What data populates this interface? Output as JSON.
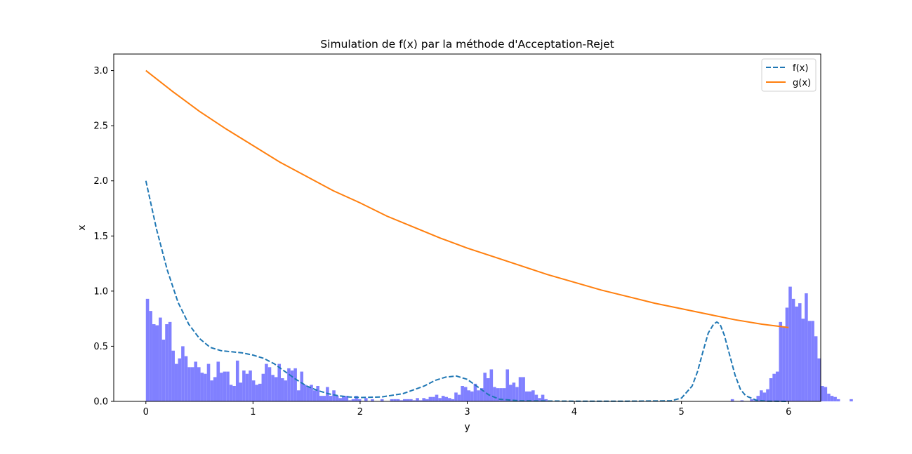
{
  "chart_data": {
    "type": "line",
    "title": "Simulation de f(x) par la méthode d'Acceptation-Rejet",
    "xlabel": "y",
    "ylabel": "x",
    "xlim": [
      -0.3,
      6.3
    ],
    "ylim": [
      0,
      3.15
    ],
    "xticks": [
      "0",
      "1",
      "2",
      "3",
      "4",
      "5",
      "6"
    ],
    "yticks": [
      "0.0",
      "0.5",
      "1.0",
      "1.5",
      "2.0",
      "2.5",
      "3.0"
    ],
    "grid": false,
    "legend_position": "upper right",
    "series": [
      {
        "name": "f(x)",
        "style": "dashed",
        "color": "#1f77b4",
        "x": [
          0,
          0.1,
          0.2,
          0.3,
          0.4,
          0.5,
          0.6,
          0.7,
          0.8,
          0.9,
          1.0,
          1.1,
          1.2,
          1.3,
          1.4,
          1.5,
          1.6,
          1.7,
          1.8,
          1.9,
          2.0,
          2.2,
          2.4,
          2.6,
          2.7,
          2.8,
          2.9,
          3.0,
          3.1,
          3.2,
          3.3,
          3.5,
          4.0,
          4.5,
          4.9,
          5.0,
          5.1,
          5.15,
          5.2,
          5.25,
          5.3,
          5.33,
          5.36,
          5.4,
          5.45,
          5.5,
          5.55,
          5.6,
          5.7,
          5.8,
          6.0
        ],
        "y": [
          2.0,
          1.56,
          1.19,
          0.9,
          0.7,
          0.57,
          0.49,
          0.46,
          0.45,
          0.44,
          0.42,
          0.39,
          0.34,
          0.27,
          0.2,
          0.14,
          0.1,
          0.07,
          0.05,
          0.04,
          0.035,
          0.04,
          0.07,
          0.14,
          0.19,
          0.22,
          0.23,
          0.2,
          0.13,
          0.06,
          0.02,
          0.005,
          0.002,
          0.002,
          0.005,
          0.03,
          0.14,
          0.27,
          0.45,
          0.62,
          0.7,
          0.72,
          0.7,
          0.6,
          0.42,
          0.24,
          0.11,
          0.05,
          0.01,
          0.002,
          0.0
        ]
      },
      {
        "name": "g(x)",
        "style": "solid",
        "color": "#ff7f0e",
        "x": [
          0,
          0.25,
          0.5,
          0.75,
          1.0,
          1.25,
          1.5,
          1.75,
          2.0,
          2.25,
          2.5,
          2.75,
          3.0,
          3.25,
          3.5,
          3.75,
          4.0,
          4.25,
          4.5,
          4.75,
          5.0,
          5.25,
          5.5,
          5.75,
          6.0
        ],
        "y": [
          3.0,
          2.81,
          2.63,
          2.47,
          2.32,
          2.17,
          2.04,
          1.91,
          1.8,
          1.68,
          1.58,
          1.48,
          1.39,
          1.31,
          1.23,
          1.15,
          1.08,
          1.01,
          0.95,
          0.89,
          0.84,
          0.79,
          0.74,
          0.7,
          0.67
        ]
      }
    ],
    "histogram": {
      "color": "#8080ff",
      "bin_start": 0,
      "bin_width": 0.03,
      "values": [
        0.93,
        0.82,
        0.7,
        0.69,
        0.76,
        0.56,
        0.7,
        0.72,
        0.46,
        0.34,
        0.39,
        0.5,
        0.41,
        0.31,
        0.31,
        0.36,
        0.31,
        0.26,
        0.25,
        0.34,
        0.19,
        0.22,
        0.36,
        0.26,
        0.27,
        0.27,
        0.15,
        0.14,
        0.37,
        0.17,
        0.28,
        0.25,
        0.28,
        0.19,
        0.15,
        0.16,
        0.25,
        0.34,
        0.31,
        0.24,
        0.22,
        0.34,
        0.21,
        0.19,
        0.3,
        0.28,
        0.3,
        0.1,
        0.27,
        0.15,
        0.13,
        0.15,
        0.1,
        0.14,
        0.05,
        0.05,
        0.13,
        0.05,
        0.1,
        0.05,
        0.03,
        0.05,
        0.05,
        0.01,
        0.02,
        0.05,
        0.02,
        0.0,
        0.03,
        0.0,
        0.02,
        0.0,
        0.0,
        0.02,
        0.0,
        0.0,
        0.02,
        0.02,
        0.02,
        0.01,
        0.02,
        0.02,
        0.02,
        0.01,
        0.03,
        0.01,
        0.03,
        0.02,
        0.04,
        0.04,
        0.06,
        0.03,
        0.05,
        0.04,
        0.03,
        0.02,
        0.08,
        0.06,
        0.14,
        0.13,
        0.1,
        0.09,
        0.16,
        0.1,
        0.12,
        0.26,
        0.21,
        0.29,
        0.13,
        0.12,
        0.12,
        0.12,
        0.29,
        0.15,
        0.17,
        0.13,
        0.22,
        0.22,
        0.09,
        0.09,
        0.1,
        0.06,
        0.03,
        0.06,
        0.02,
        0.0,
        0.0,
        0.0,
        0.0,
        0.0,
        0.0,
        0.0,
        0.0,
        0.0,
        0.0,
        0.0,
        0.0,
        0.0,
        0.0,
        0.0,
        0.0,
        0.0,
        0.0,
        0.0,
        0.0,
        0.0,
        0.0,
        0.0,
        0.0,
        0.0,
        0.0,
        0.0,
        0.0,
        0.0,
        0.0,
        0.0,
        0.0,
        0.0,
        0.0,
        0.0,
        0.0,
        0.0,
        0.0,
        0.0,
        0.0,
        0.0,
        0.0,
        0.0,
        0.0,
        0.0,
        0.0,
        0.0,
        0.0,
        0.0,
        0.0,
        0.0,
        0.0,
        0.0,
        0.0,
        0.0,
        0.0,
        0.0,
        0.02,
        0.0,
        0.0,
        0.01,
        0.0,
        0.0,
        0.02,
        0.01,
        0.05,
        0.1,
        0.08,
        0.11,
        0.21,
        0.25,
        0.27,
        0.72,
        0.68,
        0.85,
        1.04,
        0.93,
        0.86,
        0.89,
        0.75,
        0.98,
        0.73,
        0.73,
        0.59,
        0.39,
        0.14,
        0.13,
        0.07,
        0.05,
        0.04,
        0.02,
        0.0,
        0.0,
        0.0,
        0.02,
        0.0,
        0.0,
        0.0,
        0.0,
        0.0
      ]
    }
  }
}
